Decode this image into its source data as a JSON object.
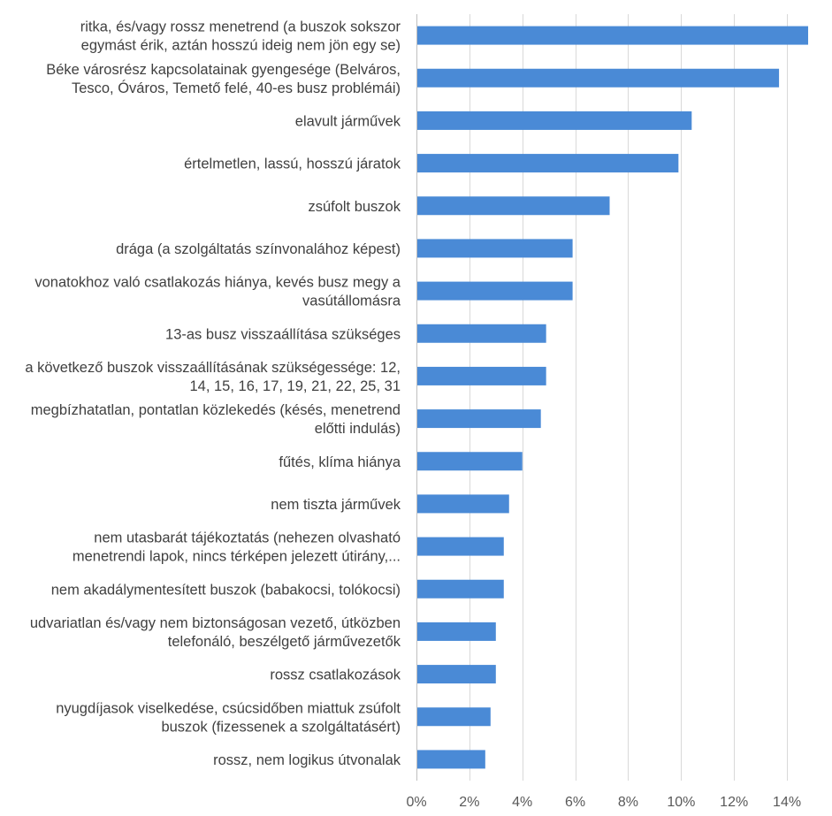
{
  "chart_data": {
    "type": "bar",
    "orientation": "horizontal",
    "title": "",
    "xlabel": "",
    "ylabel": "",
    "xlim": [
      0,
      0.15
    ],
    "x_ticks": [
      0,
      0.02,
      0.04,
      0.06,
      0.08,
      0.1,
      0.12,
      0.14
    ],
    "x_tick_labels": [
      "0%",
      "2%",
      "4%",
      "6%",
      "8%",
      "10%",
      "12%",
      "14%"
    ],
    "grid": true,
    "legend": "none",
    "bar_color": "#4a8ad6",
    "categories": [
      [
        "ritka, és/vagy rossz menetrend (a buszok sokszor",
        "egymást érik, aztán hosszú ideig nem jön egy se)"
      ],
      [
        "Béke városrész kapcsolatainak gyengesége (Belváros,",
        "Tesco, Óváros, Temető felé, 40-es busz problémái)"
      ],
      [
        "elavult járművek"
      ],
      [
        "értelmetlen, lassú, hosszú járatok"
      ],
      [
        "zsúfolt buszok"
      ],
      [
        "drága (a szolgáltatás színvonalához képest)"
      ],
      [
        "vonatokhoz való csatlakozás hiánya, kevés busz megy a",
        "vasútállomásra"
      ],
      [
        "13-as busz visszaállítása szükséges"
      ],
      [
        "a következő buszok visszaállításának szükségessége: 12,",
        "14, 15, 16, 17, 19, 21, 22, 25, 31"
      ],
      [
        "megbízhatatlan, pontatlan közlekedés (késés, menetrend",
        "előtti indulás)"
      ],
      [
        "fűtés, klíma hiánya"
      ],
      [
        "nem tiszta járművek"
      ],
      [
        "nem utasbarát tájékoztatás (nehezen olvasható",
        "menetrendi lapok, nincs térképen jelezett útirány,..."
      ],
      [
        "nem akadálymentesített buszok (babakocsi, tolókocsi)"
      ],
      [
        "udvariatlan és/vagy nem biztonságosan vezető, útközben",
        "telefonáló, beszélgető járművezetők"
      ],
      [
        "rossz csatlakozások"
      ],
      [
        "nyugdíjasok viselkedése, csúcsidőben miattuk zsúfolt",
        "buszok (fizessenek a szolgáltatásért)"
      ],
      [
        "rossz, nem logikus útvonalak"
      ]
    ],
    "values": [
      0.148,
      0.137,
      0.104,
      0.099,
      0.073,
      0.059,
      0.059,
      0.049,
      0.049,
      0.047,
      0.04,
      0.035,
      0.033,
      0.033,
      0.03,
      0.03,
      0.028,
      0.026
    ]
  }
}
